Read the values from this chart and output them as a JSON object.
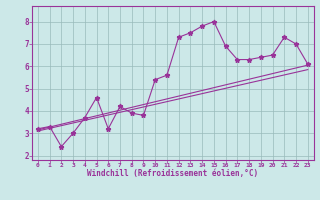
{
  "background_color": "#cce8e8",
  "line_color": "#993399",
  "grid_color": "#99bbbb",
  "xlim": [
    -0.5,
    23.5
  ],
  "ylim": [
    1.8,
    8.7
  ],
  "xticks": [
    0,
    1,
    2,
    3,
    4,
    5,
    6,
    7,
    8,
    9,
    10,
    11,
    12,
    13,
    14,
    15,
    16,
    17,
    18,
    19,
    20,
    21,
    22,
    23
  ],
  "yticks": [
    2,
    3,
    4,
    5,
    6,
    7,
    8
  ],
  "xlabel": "Windchill (Refroidissement éolien,°C)",
  "main_x": [
    0,
    1,
    2,
    3,
    4,
    5,
    6,
    7,
    8,
    9,
    10,
    11,
    12,
    13,
    14,
    15,
    16,
    17,
    18,
    19,
    20,
    21,
    22,
    23
  ],
  "main_y": [
    3.2,
    3.3,
    2.4,
    3.0,
    3.7,
    4.6,
    3.2,
    4.2,
    3.9,
    3.8,
    5.4,
    5.6,
    7.3,
    7.5,
    7.8,
    8.0,
    6.9,
    6.3,
    6.3,
    6.4,
    6.5,
    7.3,
    7.0,
    6.1
  ],
  "trend1_x": [
    0,
    23
  ],
  "trend1_y": [
    3.1,
    5.85
  ],
  "trend2_x": [
    0,
    23
  ],
  "trend2_y": [
    3.15,
    6.05
  ]
}
